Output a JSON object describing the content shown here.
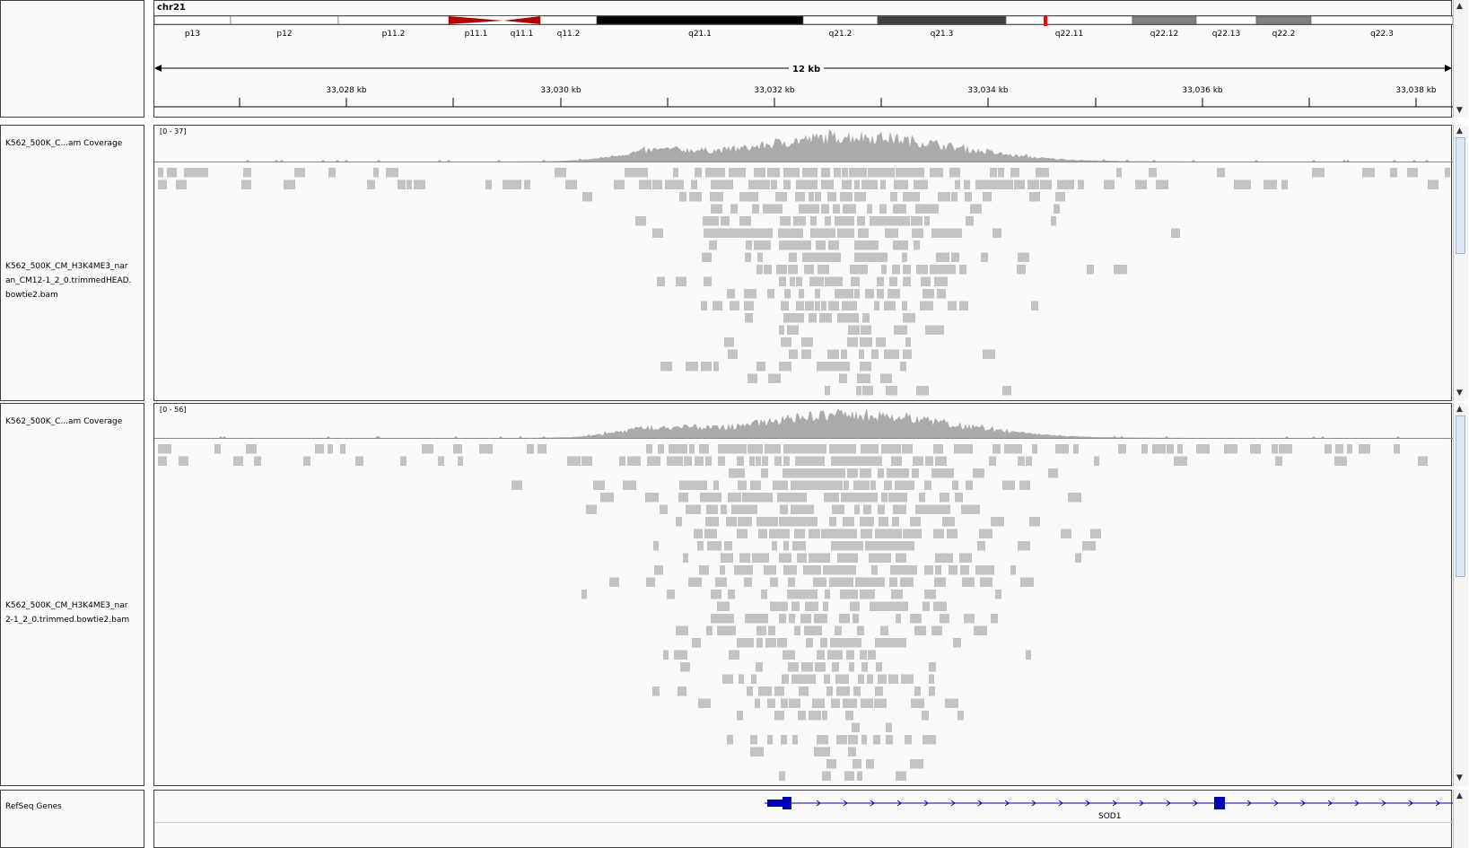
{
  "header": {
    "chromosome": "chr21",
    "span_label": "12 kb",
    "bands": [
      "p13",
      "p12",
      "p11.2",
      "p11.1",
      "q11.1",
      "q11.2",
      "q21.1",
      "q21.2",
      "q21.3",
      "q22.11",
      "q22.12",
      "q22.13",
      "q22.2",
      "q22.3"
    ],
    "ruler_ticks": [
      "33,028 kb",
      "33,030 kb",
      "33,032 kb",
      "33,034 kb",
      "33,036 kb",
      "33,038 kb"
    ]
  },
  "tracks": [
    {
      "coverage_name": "K562_500K_C...am Coverage",
      "range": "[0 - 37]",
      "alignment_name_lines": [
        "K562_500K_CM_H3K4ME3_nar",
        "an_CM12-1_2_0.trimmedHEAD.",
        "bowtie2.bam"
      ]
    },
    {
      "coverage_name": "K562_500K_C...am Coverage",
      "range": "[0 - 56]",
      "alignment_name_lines": [
        "K562_500K_CM_H3K4ME3_nar",
        "2-1_2_0.trimmed.bowtie2.bam"
      ]
    }
  ],
  "genes": {
    "track_name": "RefSeq Genes",
    "gene_label": "SOD1"
  },
  "colors": {
    "centromere": "#b00000",
    "read": "#c3c3c3",
    "coverage": "#aaaaaa",
    "gene": "#0000b2",
    "current_locus_marker": "#ff0000"
  }
}
